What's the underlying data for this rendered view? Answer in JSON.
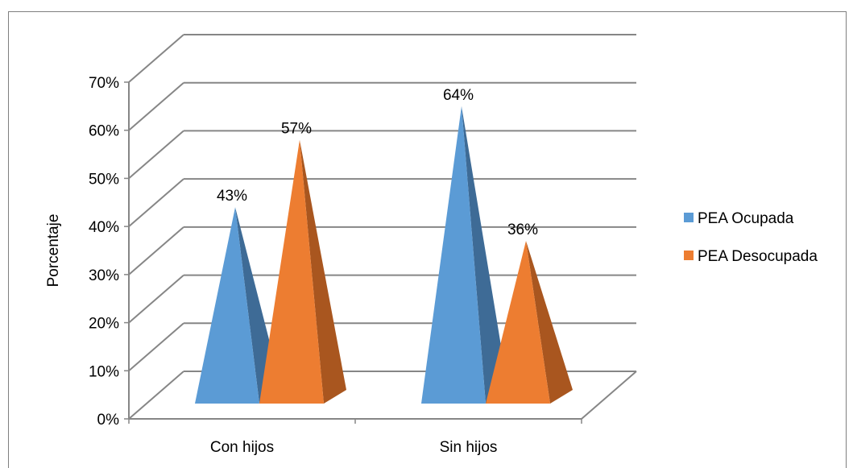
{
  "chart_data": {
    "type": "bar",
    "subtype": "3d-pyramid",
    "title": "",
    "xlabel": "",
    "ylabel": "Porcentaje",
    "ylim": [
      0,
      70
    ],
    "yticks": [
      "0%",
      "10%",
      "20%",
      "30%",
      "40%",
      "50%",
      "60%",
      "70%"
    ],
    "categories": [
      "Con hijos",
      "Sin hijos"
    ],
    "series": [
      {
        "name": "PEA Ocupada",
        "values": [
          43,
          64
        ],
        "labels": [
          "43%",
          "64%"
        ],
        "color": "#5b9bd5",
        "shade": "#3e6b96"
      },
      {
        "name": "PEA Desocupada",
        "values": [
          57,
          36
        ],
        "labels": [
          "57%",
          "36%"
        ],
        "color": "#ed7d31",
        "shade": "#a9561f"
      }
    ],
    "grid": true,
    "legend_position": "right"
  }
}
